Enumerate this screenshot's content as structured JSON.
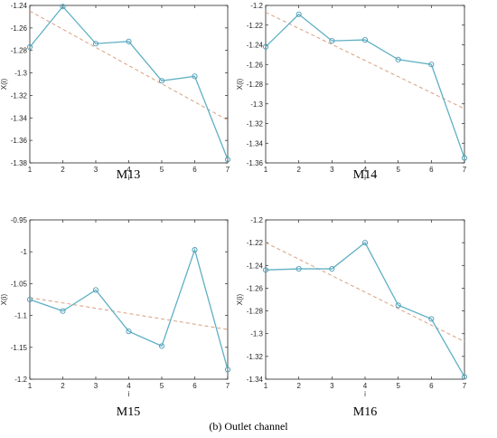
{
  "caption": "(b) Outlet channel",
  "chart_data": [
    {
      "type": "line",
      "title": "M13",
      "xlabel": "i",
      "ylabel": "X(i)",
      "xlim": [
        1,
        7
      ],
      "ylim": [
        -1.38,
        -1.24
      ],
      "x_ticks": [
        1,
        2,
        3,
        4,
        5,
        6,
        7
      ],
      "y_ticks": [
        "-1.24",
        "-1.26",
        "-1.28",
        "-1.3",
        "-1.32",
        "-1.34",
        "-1.36",
        "-1.38"
      ],
      "x": [
        1,
        2,
        3,
        4,
        5,
        6,
        7
      ],
      "series": [
        {
          "values": [
            -1.277,
            -1.241,
            -1.274,
            -1.272,
            -1.307,
            -1.303,
            -1.377
          ]
        },
        {
          "values": [
            -1.245,
            -1.342
          ],
          "x": [
            1,
            7
          ],
          "style": "dashed"
        }
      ]
    },
    {
      "type": "line",
      "title": "M14",
      "xlabel": "i",
      "ylabel": "X(i)",
      "xlim": [
        1,
        7
      ],
      "ylim": [
        -1.36,
        -1.2
      ],
      "x_ticks": [
        1,
        2,
        3,
        4,
        5,
        6,
        7
      ],
      "y_ticks": [
        "-1.2",
        "-1.22",
        "-1.24",
        "-1.26",
        "-1.28",
        "-1.3",
        "-1.32",
        "-1.34",
        "-1.36"
      ],
      "x": [
        1,
        2,
        3,
        4,
        5,
        6,
        7
      ],
      "series": [
        {
          "values": [
            -1.242,
            -1.209,
            -1.236,
            -1.235,
            -1.255,
            -1.26,
            -1.355
          ]
        },
        {
          "values": [
            -1.207,
            -1.305
          ],
          "x": [
            1,
            7
          ],
          "style": "dashed"
        }
      ]
    },
    {
      "type": "line",
      "title": "M15",
      "xlabel": "i",
      "ylabel": "X(i)",
      "xlim": [
        1,
        7
      ],
      "ylim": [
        -1.2,
        -0.95
      ],
      "x_ticks": [
        1,
        2,
        3,
        4,
        5,
        6,
        7
      ],
      "y_ticks": [
        "-0.95",
        "-1",
        "-1.05",
        "-1.1",
        "-1.15",
        "-1.2"
      ],
      "x": [
        1,
        2,
        3,
        4,
        5,
        6,
        7
      ],
      "series": [
        {
          "values": [
            -1.075,
            -1.093,
            -1.06,
            -1.125,
            -1.148,
            -0.997,
            -1.185
          ]
        },
        {
          "values": [
            -1.072,
            -1.122
          ],
          "x": [
            1,
            7
          ],
          "style": "dashed"
        }
      ]
    },
    {
      "type": "line",
      "title": "M16",
      "xlabel": "i",
      "ylabel": "X(i)",
      "xlim": [
        1,
        7
      ],
      "ylim": [
        -1.34,
        -1.2
      ],
      "x_ticks": [
        1,
        2,
        3,
        4,
        5,
        6,
        7
      ],
      "y_ticks": [
        "-1.2",
        "-1.22",
        "-1.24",
        "-1.26",
        "-1.28",
        "-1.3",
        "-1.32",
        "-1.34"
      ],
      "x": [
        1,
        2,
        3,
        4,
        5,
        6,
        7
      ],
      "series": [
        {
          "values": [
            -1.244,
            -1.243,
            -1.243,
            -1.22,
            -1.275,
            -1.287,
            -1.338
          ]
        },
        {
          "values": [
            -1.22,
            -1.307
          ],
          "x": [
            1,
            7
          ],
          "style": "dashed"
        }
      ]
    }
  ],
  "colors": {
    "series": "#5fb0c4",
    "marker": "#4a9ab5",
    "trend": "#d9a080",
    "axis": "#262626"
  }
}
